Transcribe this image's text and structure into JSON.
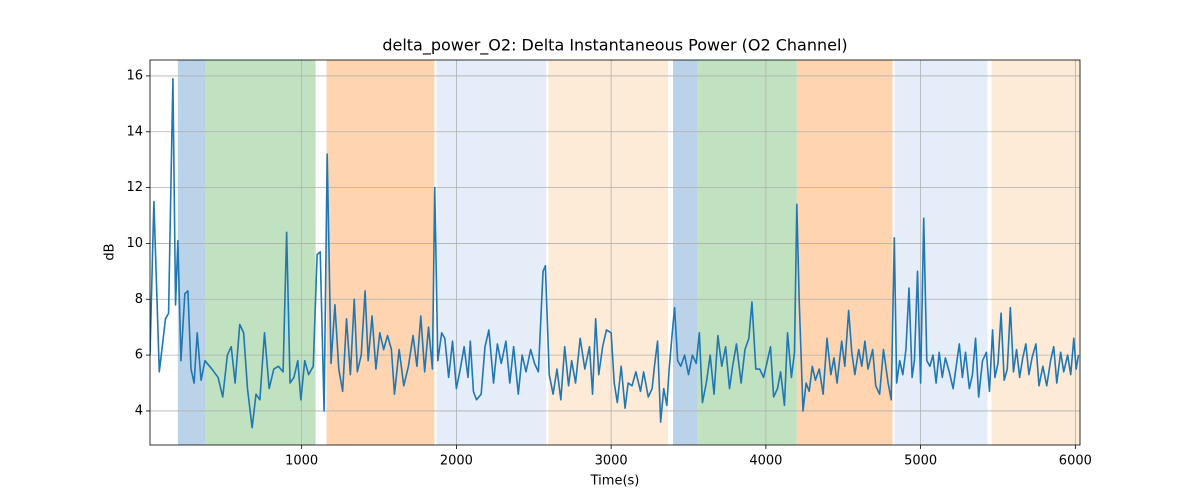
{
  "chart_data": {
    "type": "line",
    "title": "delta_power_O2: Delta Instantaneous Power (O2 Channel)",
    "xlabel": "Time(s)",
    "ylabel": "dB",
    "color": "#1f77b4",
    "grid": true,
    "xlim": [
      20,
      6030
    ],
    "ylim": [
      2.78,
      16.57
    ],
    "xticks": [
      1000,
      2000,
      3000,
      4000,
      5000,
      6000
    ],
    "yticks": [
      4,
      6,
      8,
      10,
      12,
      14,
      16
    ],
    "spans": [
      {
        "start": 200,
        "end": 381,
        "color": "#bad3e8"
      },
      {
        "start": 381,
        "end": 1090,
        "color": "#c0e2c0"
      },
      {
        "start": 1161,
        "end": 1858,
        "color": "#fed5b0"
      },
      {
        "start": 1871,
        "end": 2581,
        "color": "#e5edf8"
      },
      {
        "start": 2594,
        "end": 3368,
        "color": "#feebd7"
      },
      {
        "start": 3400,
        "end": 3555,
        "color": "#bad3e8"
      },
      {
        "start": 3555,
        "end": 4200,
        "color": "#c0e2c0"
      },
      {
        "start": 4200,
        "end": 4819,
        "color": "#fed5b0"
      },
      {
        "start": 4832,
        "end": 5432,
        "color": "#e5edf8"
      },
      {
        "start": 5458,
        "end": 6030,
        "color": "#feebd7"
      }
    ],
    "x": [
      20,
      45,
      80,
      120,
      140,
      168,
      185,
      200,
      220,
      245,
      265,
      285,
      305,
      325,
      350,
      375,
      420,
      460,
      490,
      520,
      545,
      570,
      600,
      625,
      650,
      680,
      705,
      730,
      760,
      790,
      820,
      850,
      880,
      903,
      925,
      950,
      975,
      995,
      1020,
      1045,
      1075,
      1100,
      1120,
      1145,
      1165,
      1190,
      1215,
      1240,
      1265,
      1290,
      1315,
      1340,
      1360,
      1385,
      1410,
      1430,
      1455,
      1480,
      1505,
      1530,
      1555,
      1580,
      1600,
      1630,
      1660,
      1690,
      1720,
      1745,
      1770,
      1795,
      1820,
      1845,
      1860,
      1880,
      1905,
      1925,
      1950,
      1975,
      2000,
      2025,
      2050,
      2075,
      2090,
      2110,
      2130,
      2160,
      2185,
      2210,
      2240,
      2265,
      2290,
      2320,
      2345,
      2370,
      2400,
      2425,
      2450,
      2480,
      2505,
      2530,
      2560,
      2575,
      2600,
      2625,
      2650,
      2675,
      2700,
      2725,
      2745,
      2770,
      2800,
      2830,
      2860,
      2880,
      2900,
      2920,
      2945,
      2970,
      3000,
      3020,
      3040,
      3065,
      3090,
      3110,
      3135,
      3160,
      3190,
      3210,
      3240,
      3265,
      3280,
      3300,
      3320,
      3340,
      3360,
      3375,
      3395,
      3410,
      3430,
      3450,
      3475,
      3500,
      3525,
      3550,
      3570,
      3590,
      3615,
      3640,
      3665,
      3690,
      3715,
      3740,
      3765,
      3785,
      3810,
      3840,
      3865,
      3890,
      3910,
      3935,
      3960,
      3985,
      4010,
      4030,
      4050,
      4075,
      4095,
      4120,
      4140,
      4165,
      4185,
      4200,
      4215,
      4240,
      4260,
      4280,
      4300,
      4320,
      4345,
      4370,
      4395,
      4420,
      4440,
      4460,
      4490,
      4510,
      4535,
      4555,
      4575,
      4600,
      4620,
      4640,
      4660,
      4690,
      4710,
      4735,
      4760,
      4790,
      4810,
      4830,
      4845,
      4865,
      4885,
      4905,
      4925,
      4945,
      4960,
      4980,
      5000,
      5020,
      5040,
      5060,
      5080,
      5100,
      5120,
      5140,
      5160,
      5185,
      5210,
      5230,
      5250,
      5270,
      5290,
      5315,
      5335,
      5355,
      5375,
      5400,
      5425,
      5445,
      5465,
      5480,
      5500,
      5520,
      5540,
      5560,
      5580,
      5600,
      5620,
      5640,
      5660,
      5680,
      5700,
      5720,
      5745,
      5765,
      5790,
      5815,
      5840,
      5860,
      5880,
      5905,
      5925,
      5950,
      5970,
      5990,
      6005,
      6020
    ],
    "values": [
      6.0,
      11.5,
      5.4,
      7.3,
      7.5,
      15.9,
      7.8,
      10.1,
      5.8,
      8.2,
      8.3,
      5.5,
      5.0,
      6.8,
      5.1,
      5.8,
      5.5,
      5.2,
      4.5,
      6.0,
      6.3,
      5.0,
      7.1,
      6.8,
      4.8,
      3.4,
      4.6,
      4.4,
      6.8,
      4.8,
      5.5,
      5.6,
      5.4,
      10.4,
      5.0,
      5.2,
      5.8,
      4.4,
      5.8,
      5.3,
      5.6,
      9.6,
      9.7,
      4.0,
      13.2,
      5.7,
      7.8,
      5.5,
      4.7,
      7.3,
      5.3,
      8.0,
      5.4,
      6.0,
      8.3,
      5.8,
      7.4,
      5.5,
      6.8,
      6.2,
      6.7,
      6.2,
      4.6,
      6.2,
      4.9,
      5.6,
      6.7,
      5.6,
      7.4,
      5.4,
      7.0,
      5.5,
      12.0,
      5.8,
      6.8,
      6.6,
      5.2,
      6.5,
      4.8,
      5.5,
      6.3,
      5.2,
      6.5,
      4.7,
      4.4,
      4.6,
      6.3,
      6.9,
      5.0,
      6.4,
      5.7,
      6.5,
      5.0,
      6.3,
      4.6,
      6.0,
      5.4,
      6.2,
      5.7,
      5.4,
      9.0,
      9.2,
      5.3,
      4.6,
      5.5,
      4.4,
      6.3,
      4.9,
      5.8,
      5.0,
      6.6,
      5.5,
      6.3,
      4.6,
      7.3,
      5.3,
      6.3,
      6.9,
      6.8,
      5.0,
      4.3,
      5.6,
      4.1,
      5.0,
      4.9,
      5.4,
      4.7,
      5.4,
      4.5,
      4.8,
      5.6,
      6.5,
      3.6,
      4.8,
      4.2,
      5.5,
      6.8,
      7.7,
      5.8,
      5.6,
      6.0,
      5.3,
      6.0,
      5.7,
      6.8,
      4.3,
      5.0,
      6.0,
      4.6,
      6.7,
      5.6,
      6.3,
      4.8,
      5.6,
      6.4,
      5.0,
      6.2,
      6.6,
      7.9,
      5.5,
      5.5,
      5.2,
      5.8,
      6.3,
      4.5,
      4.8,
      5.4,
      4.2,
      6.8,
      5.2,
      6.1,
      11.4,
      8.0,
      4.0,
      5.0,
      4.7,
      5.6,
      5.1,
      5.5,
      4.6,
      6.6,
      5.3,
      5.9,
      5.0,
      6.5,
      5.6,
      7.6,
      6.1,
      5.3,
      6.2,
      5.6,
      6.5,
      5.5,
      6.2,
      4.9,
      4.6,
      6.2,
      5.0,
      4.4,
      10.2,
      5.0,
      5.8,
      5.3,
      6.2,
      8.4,
      5.2,
      5.8,
      9.0,
      5.0,
      10.9,
      5.8,
      5.6,
      6.0,
      5.0,
      6.1,
      5.2,
      5.9,
      5.4,
      4.8,
      5.6,
      6.4,
      5.2,
      6.1,
      4.8,
      5.3,
      6.6,
      4.5,
      5.8,
      6.1,
      4.7,
      6.9,
      5.2,
      5.7,
      7.5,
      5.1,
      5.5,
      7.7,
      5.4,
      6.2,
      5.2,
      5.9,
      6.4,
      5.3,
      5.9,
      6.4,
      4.9,
      5.6,
      4.9,
      5.8,
      6.3,
      5.0,
      6.1,
      5.4,
      6.0,
      5.3,
      6.6,
      5.5,
      6.0
    ]
  }
}
